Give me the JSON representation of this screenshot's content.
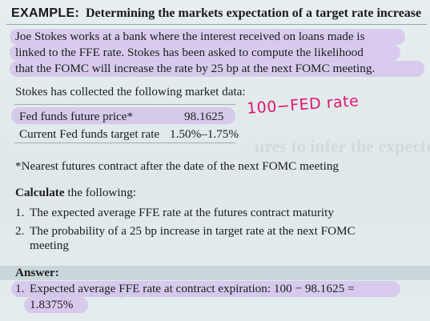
{
  "example": {
    "label": "EXAMPLE:",
    "title": "Determining the markets expectation of a target rate increase"
  },
  "intro_lines": [
    "Joe Stokes works at a bank where the interest received on loans made is",
    "linked to the FFE rate. Stokes has been asked to compute the likelihood",
    "that the FOMC will increase the rate by 25 bp at the next FOMC meeting."
  ],
  "collected": "Stokes has collected the following market data:",
  "market_data": [
    {
      "label": "Fed funds future price*",
      "value": "98.1625"
    },
    {
      "label": "Current Fed funds target rate",
      "value": "1.50%–1.75%"
    }
  ],
  "annotation": "100−FED rate",
  "footnote": "*Nearest futures contract after the date of the next FOMC meeting",
  "calculate": {
    "bold": "Calculate",
    "rest": "the following:"
  },
  "questions": [
    {
      "num": "1.",
      "lines": [
        "The expected average FFE rate at the futures contract maturity"
      ]
    },
    {
      "num": "2.",
      "lines": [
        "The probability of a 25 bp increase in target rate at the next FOMC",
        "meeting"
      ]
    }
  ],
  "answer_label": "Answer:",
  "answers": [
    {
      "num": "1.",
      "lines": [
        "Expected average FFE rate at contract expiration: 100 − 98.1625 =",
        "1.8375%"
      ]
    }
  ]
}
